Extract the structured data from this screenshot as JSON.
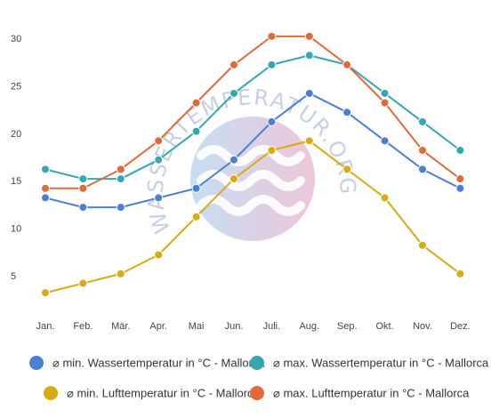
{
  "chart_data": {
    "type": "line",
    "categories": [
      "Jan.",
      "Feb.",
      "Mär.",
      "Apr.",
      "Mai",
      "Jun.",
      "Juli.",
      "Aug.",
      "Sep.",
      "Okt.",
      "Nov.",
      "Dez."
    ],
    "yticks": [
      5,
      10,
      15,
      20,
      25,
      30
    ],
    "ylim": [
      0,
      32
    ],
    "grid": false,
    "legend_position": "bottom",
    "series": [
      {
        "name": "⌀ min. Wassertemperatur in °C - Mallorca",
        "color": "#4a7fd4",
        "values": [
          13.2,
          12.2,
          12.2,
          13.2,
          14.2,
          17.2,
          21.2,
          24.2,
          22.2,
          19.2,
          16.2,
          14.2
        ]
      },
      {
        "name": "⌀ max. Wassertemperatur in °C - Mallorca",
        "color": "#35a7b3",
        "values": [
          16.2,
          15.2,
          15.2,
          17.2,
          20.2,
          24.2,
          27.2,
          28.2,
          27.2,
          24.2,
          21.2,
          18.2
        ]
      },
      {
        "name": "⌀ min. Lufttemperatur in °C - Mallorca",
        "color": "#d9ab12",
        "values": [
          3.2,
          4.2,
          5.2,
          7.2,
          11.2,
          15.2,
          18.2,
          19.2,
          16.2,
          13.2,
          8.2,
          5.2
        ]
      },
      {
        "name": "⌀ max. Lufttemperatur in °C - Mallorca",
        "color": "#e06a3a",
        "values": [
          14.2,
          14.2,
          16.2,
          19.2,
          23.2,
          27.2,
          30.2,
          30.2,
          27.2,
          23.2,
          18.2,
          15.2
        ]
      }
    ]
  },
  "watermark": {
    "text": "WASSERTEMPERATUR.ORG"
  }
}
